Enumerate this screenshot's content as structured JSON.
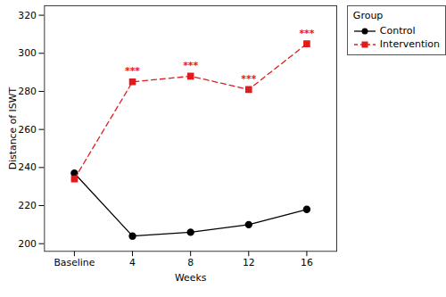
{
  "chart_data": {
    "type": "line",
    "x_label": "Weeks",
    "y_label": "Distance of ISWT",
    "categories": [
      "Baseline",
      "4",
      "8",
      "12",
      "16"
    ],
    "series": [
      {
        "name": "Control",
        "color": "#000000",
        "marker": "circle",
        "line_style": "solid",
        "values": [
          237,
          204,
          206,
          210,
          218
        ]
      },
      {
        "name": "Intervention",
        "color": "#e31a1c",
        "marker": "square",
        "line_style": "dashed",
        "values": [
          234,
          285,
          288,
          281,
          305
        ]
      }
    ],
    "annotations": [
      {
        "category": "4",
        "series": "Intervention",
        "text": "***"
      },
      {
        "category": "8",
        "series": "Intervention",
        "text": "***"
      },
      {
        "category": "12",
        "series": "Intervention",
        "text": "***"
      },
      {
        "category": "16",
        "series": "Intervention",
        "text": "***"
      }
    ],
    "ylim": [
      196,
      325
    ],
    "yticks": [
      200,
      220,
      240,
      260,
      280,
      300,
      320
    ],
    "grid": false,
    "legend": "right",
    "legend_title": "Group"
  }
}
